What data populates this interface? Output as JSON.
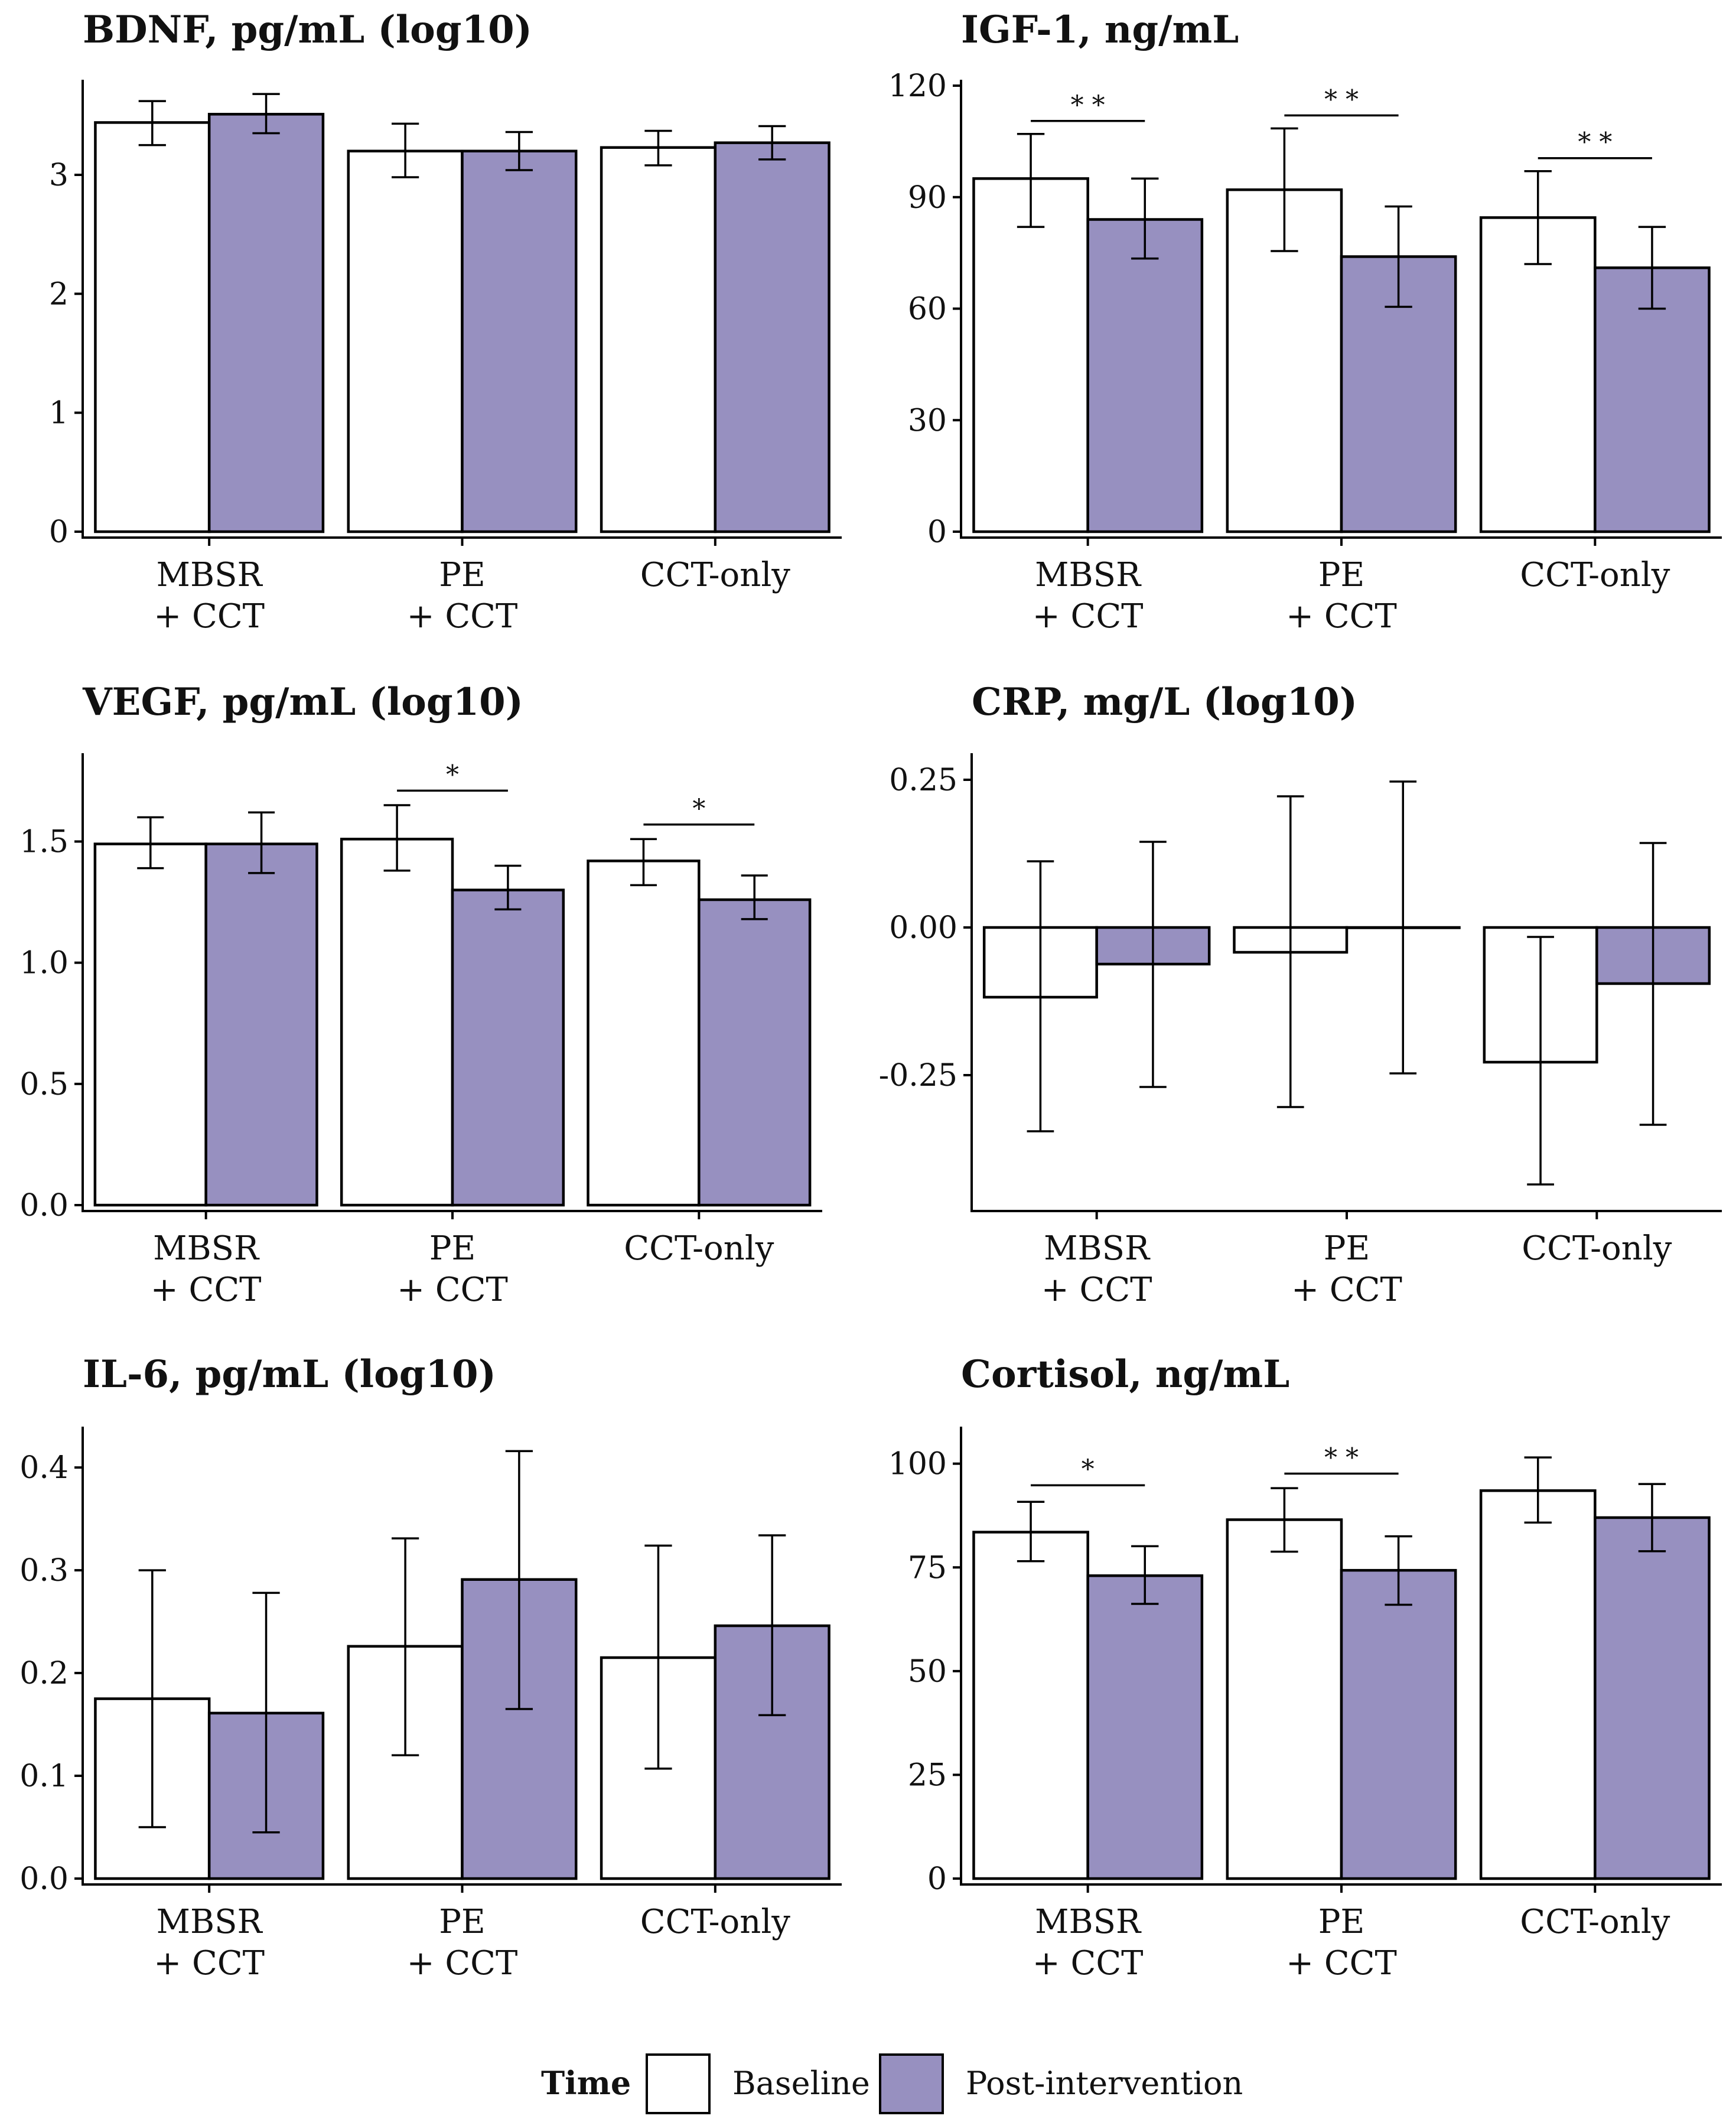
{
  "colors": {
    "baseline": "#ffffff",
    "post": "#9790c0",
    "ink": "#000000"
  },
  "legend": {
    "title": "Time",
    "items": [
      {
        "label": "Baseline",
        "color": "#ffffff"
      },
      {
        "label": "Post-intervention",
        "color": "#9790c0"
      }
    ]
  },
  "chart_data": [
    {
      "type": "bar",
      "title": "BDNF, pg/mL (log10)",
      "categories": [
        [
          "MBSR",
          "+ CCT"
        ],
        [
          "PE",
          "+ CCT"
        ],
        [
          "CCT-only"
        ]
      ],
      "ylim": [
        0,
        3.75
      ],
      "yticks": [
        0,
        1,
        2,
        3
      ],
      "ytick_labels": [
        "0",
        "1",
        "2",
        "3"
      ],
      "series": [
        {
          "name": "Baseline",
          "values": [
            3.44,
            3.2,
            3.23
          ],
          "lower": [
            3.25,
            2.98,
            3.08
          ],
          "upper": [
            3.62,
            3.43,
            3.37
          ]
        },
        {
          "name": "Post-intervention",
          "values": [
            3.51,
            3.2,
            3.27
          ],
          "lower": [
            3.35,
            3.04,
            3.13
          ],
          "upper": [
            3.68,
            3.36,
            3.41
          ]
        }
      ],
      "significance": []
    },
    {
      "type": "bar",
      "title": "IGF-1, ng/mL",
      "categories": [
        [
          "MBSR",
          "+ CCT"
        ],
        [
          "PE",
          "+ CCT"
        ],
        [
          "CCT-only"
        ]
      ],
      "ylim": [
        0,
        120
      ],
      "yticks": [
        0,
        30,
        60,
        90,
        120
      ],
      "ytick_labels": [
        "0",
        "30",
        "60",
        "90",
        "120"
      ],
      "series": [
        {
          "name": "Baseline",
          "values": [
            95,
            92,
            84.5
          ],
          "lower": [
            82,
            75.5,
            72
          ],
          "upper": [
            107,
            108.5,
            97
          ]
        },
        {
          "name": "Post-intervention",
          "values": [
            84,
            74,
            71
          ],
          "lower": [
            73.5,
            60.5,
            60
          ],
          "upper": [
            95,
            87.5,
            82
          ]
        }
      ],
      "significance": [
        {
          "group": 0,
          "label": "* *",
          "y": 110.5
        },
        {
          "group": 1,
          "label": "* *",
          "y": 112
        },
        {
          "group": 2,
          "label": "* *",
          "y": 100.5
        }
      ]
    },
    {
      "type": "bar",
      "title": "VEGF, pg/mL (log10)",
      "categories": [
        [
          "MBSR",
          "+ CCT"
        ],
        [
          "PE",
          "+ CCT"
        ],
        [
          "CCT-only"
        ]
      ],
      "ylim": [
        0,
        1.84
      ],
      "yticks": [
        0,
        0.5,
        1.0,
        1.5
      ],
      "ytick_labels": [
        "0.0",
        "0.5",
        "1.0",
        "1.5"
      ],
      "series": [
        {
          "name": "Baseline",
          "values": [
            1.49,
            1.51,
            1.42
          ],
          "lower": [
            1.39,
            1.38,
            1.32
          ],
          "upper": [
            1.6,
            1.65,
            1.51
          ]
        },
        {
          "name": "Post-intervention",
          "values": [
            1.49,
            1.3,
            1.26
          ],
          "lower": [
            1.37,
            1.22,
            1.18
          ],
          "upper": [
            1.62,
            1.4,
            1.36
          ]
        }
      ],
      "significance": [
        {
          "group": 1,
          "label": "*",
          "y": 1.71
        },
        {
          "group": 2,
          "label": "*",
          "y": 1.57
        }
      ]
    },
    {
      "type": "bar",
      "title": "CRP, mg/L (log10)",
      "categories": [
        [
          "MBSR",
          "+ CCT"
        ],
        [
          "PE",
          "+ CCT"
        ],
        [
          "CCT-only"
        ]
      ],
      "ylim": [
        -0.47,
        0.285
      ],
      "yticks": [
        -0.25,
        0.0,
        0.25
      ],
      "ytick_labels": [
        "-0.25",
        "0.00",
        "0.25"
      ],
      "series": [
        {
          "name": "Baseline",
          "values": [
            -0.118,
            -0.042,
            -0.228
          ],
          "lower": [
            -0.345,
            -0.304,
            -0.435
          ],
          "upper": [
            0.112,
            0.222,
            -0.016
          ]
        },
        {
          "name": "Post-intervention",
          "values": [
            -0.062,
            0.0,
            -0.095
          ],
          "lower": [
            -0.27,
            -0.247,
            -0.334
          ],
          "upper": [
            0.145,
            0.247,
            0.143
          ]
        }
      ],
      "significance": []
    },
    {
      "type": "bar",
      "title": "IL-6, pg/mL (log10)",
      "categories": [
        [
          "MBSR",
          "+ CCT"
        ],
        [
          "PE",
          "+ CCT"
        ],
        [
          "CCT-only"
        ]
      ],
      "ylim": [
        0,
        0.434
      ],
      "yticks": [
        0,
        0.1,
        0.2,
        0.3,
        0.4
      ],
      "ytick_labels": [
        "0.0",
        "0.1",
        "0.2",
        "0.3",
        "0.4"
      ],
      "series": [
        {
          "name": "Baseline",
          "values": [
            0.175,
            0.226,
            0.215
          ],
          "lower": [
            0.05,
            0.12,
            0.107
          ],
          "upper": [
            0.3,
            0.331,
            0.324
          ]
        },
        {
          "name": "Post-intervention",
          "values": [
            0.161,
            0.291,
            0.246
          ],
          "lower": [
            0.045,
            0.165,
            0.159
          ],
          "upper": [
            0.278,
            0.416,
            0.334
          ]
        }
      ],
      "significance": []
    },
    {
      "type": "bar",
      "title": "Cortisol, ng/mL",
      "categories": [
        [
          "MBSR",
          "+ CCT"
        ],
        [
          "PE",
          "+ CCT"
        ],
        [
          "CCT-only"
        ]
      ],
      "ylim": [
        0,
        107.5
      ],
      "yticks": [
        0,
        25,
        50,
        75,
        100
      ],
      "ytick_labels": [
        "0",
        "25",
        "50",
        "75",
        "100"
      ],
      "series": [
        {
          "name": "Baseline",
          "values": [
            83.5,
            86.5,
            93.5
          ],
          "lower": [
            76.5,
            78.8,
            85.8
          ],
          "upper": [
            90.8,
            94.1,
            101.5
          ]
        },
        {
          "name": "Post-intervention",
          "values": [
            73.0,
            74.3,
            87.0
          ],
          "lower": [
            66.2,
            66.0,
            78.9
          ],
          "upper": [
            80.1,
            82.5,
            95.1
          ]
        }
      ],
      "significance": [
        {
          "group": 0,
          "label": "*",
          "y": 94.8
        },
        {
          "group": 1,
          "label": "* *",
          "y": 97.6
        }
      ]
    }
  ]
}
